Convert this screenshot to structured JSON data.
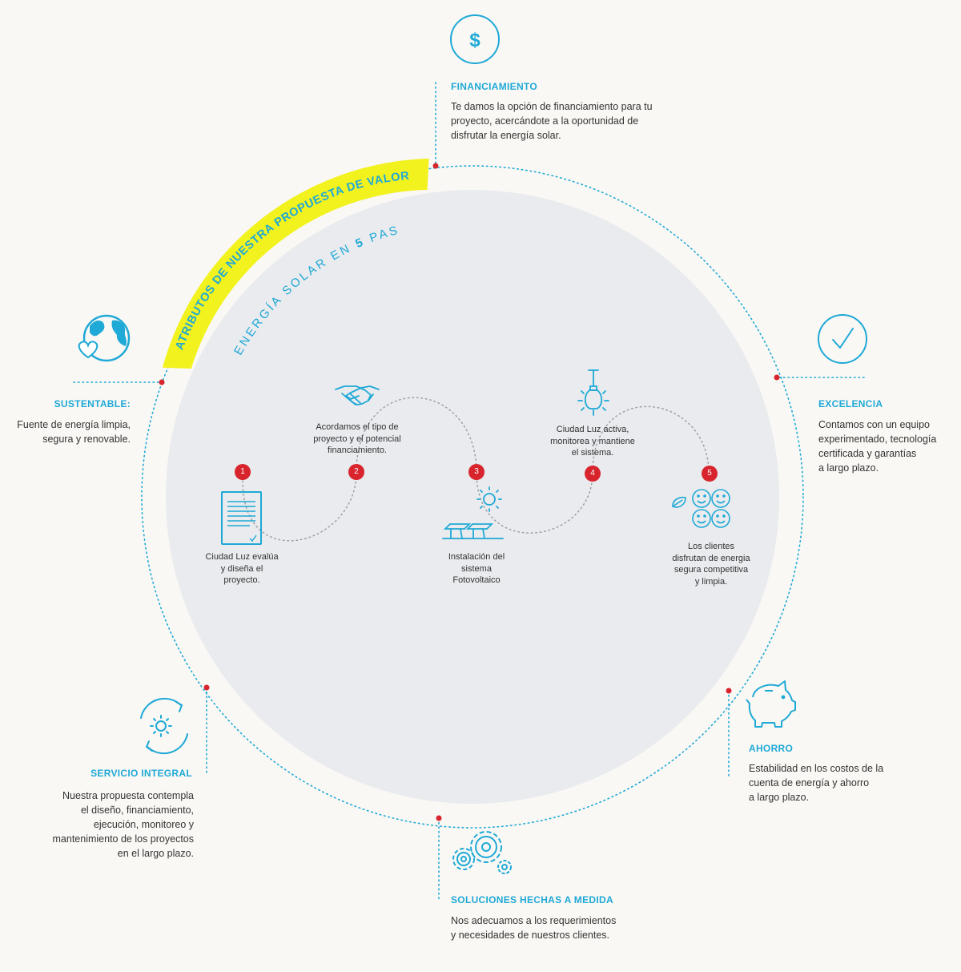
{
  "banner": {
    "title": "ATRIBUTOS DE NUESTRA PROPUESTA DE VALOR"
  },
  "subtitle": {
    "prefix": "ENERGÍA SOLAR EN ",
    "number": "5",
    "suffix": " PASOS"
  },
  "attributes": {
    "financiamiento": {
      "title": "FINANCIAMIENTO",
      "lines": [
        "Te damos la opción de financiamiento para tu",
        "proyecto, acercándote a la oportunidad de",
        "disfrutar la energía solar."
      ],
      "icon": "dollar-icon"
    },
    "excelencia": {
      "title": "EXCELENCIA",
      "lines": [
        "Contamos con un equipo",
        "experimentado, tecnología",
        "certificada y garantías",
        "a largo plazo."
      ],
      "icon": "check-icon"
    },
    "ahorro": {
      "title": "AHORRO",
      "lines": [
        "Estabilidad en los costos de la",
        "cuenta de energía y ahorro",
        "a largo plazo."
      ],
      "icon": "piggy-bank-icon"
    },
    "soluciones": {
      "title": "SOLUCIONES HECHAS A MEDIDA",
      "lines": [
        "Nos adecuamos a los requerimientos",
        "y necesidades de nuestros clientes."
      ],
      "icon": "gears-icon"
    },
    "servicio": {
      "title": "SERVICIO INTEGRAL",
      "lines": [
        "Nuestra propuesta contempla",
        "el diseño, financiamiento,",
        "ejecución, monitoreo y",
        "mantenimiento de los proyectos",
        "en el largo plazo."
      ],
      "icon": "sun-cycle-icon"
    },
    "sustentable": {
      "title": "SUSTENTABLE:",
      "lines": [
        "Fuente de energía limpia,",
        "segura y renovable."
      ],
      "icon": "earth-heart-icon"
    }
  },
  "steps": [
    {
      "number": "1",
      "lines": [
        "Ciudad Luz evalúa",
        "y diseña el",
        "proyecto."
      ],
      "icon": "document-icon"
    },
    {
      "number": "2",
      "lines": [
        "Acordamos el tipo de",
        "proyecto y el potencial",
        "financiamiento."
      ],
      "icon": "handshake-icon"
    },
    {
      "number": "3",
      "lines": [
        "Instalación del",
        "sistema",
        "Fotovoltaico"
      ],
      "icon": "solar-panels-icon"
    },
    {
      "number": "4",
      "lines": [
        "Ciudad Luz activa,",
        "monitorea y mantiene",
        "el sistema."
      ],
      "icon": "lightbulb-icon"
    },
    {
      "number": "5",
      "lines": [
        "Los clientes",
        "disfrutan de energia",
        "segura competitiva",
        "y limpia."
      ],
      "icon": "happy-clients-icon"
    }
  ],
  "colors": {
    "accent": "#1fa9d6",
    "banner": "#f2f21e",
    "circle_fill": "#e9ebee",
    "marker": "#d8252d",
    "text": "#333333"
  }
}
